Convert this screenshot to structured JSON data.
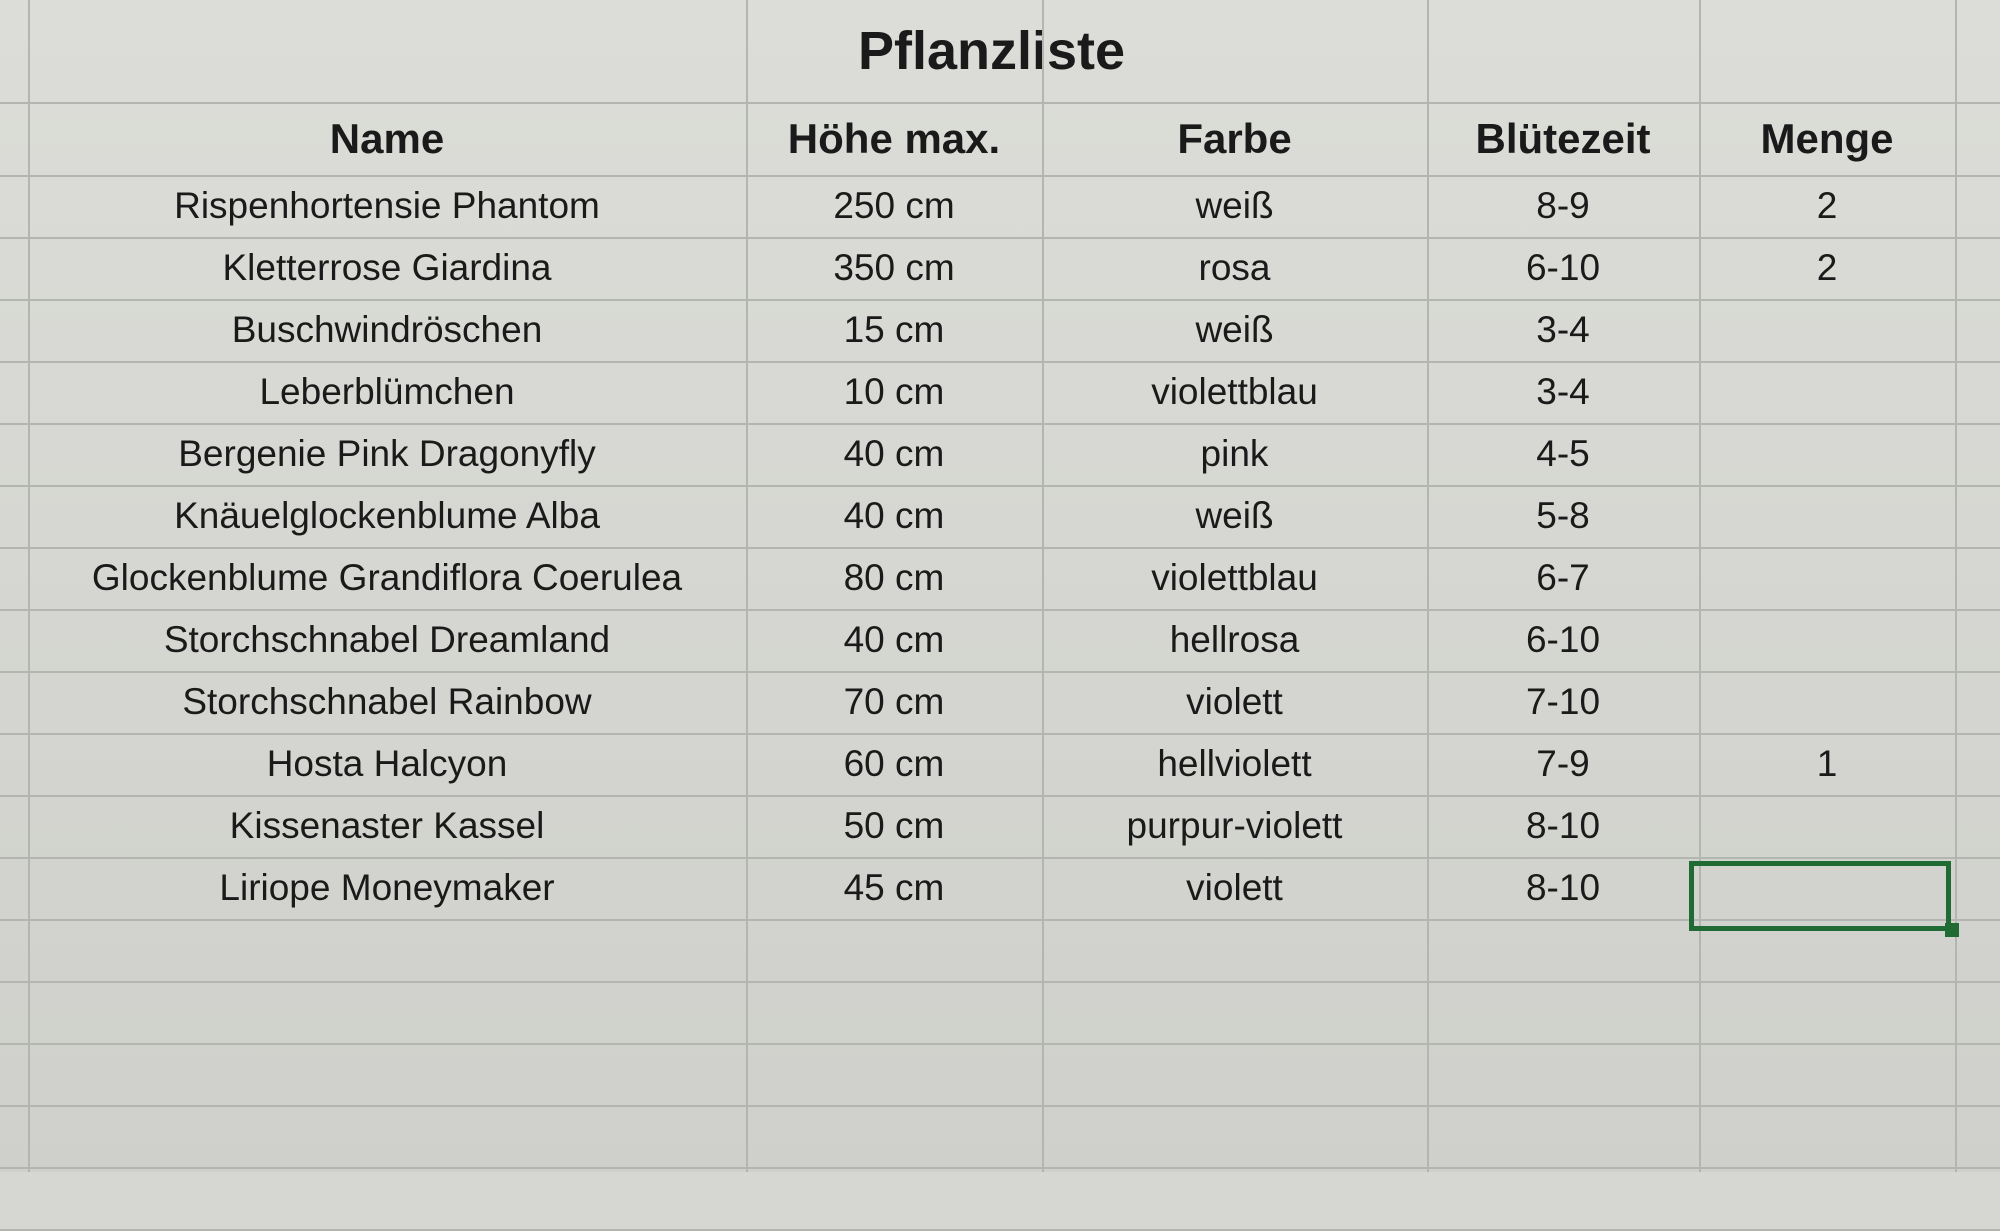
{
  "sheet": {
    "title": "Pflanzliste",
    "columns": [
      "Name",
      "Höhe max.",
      "Farbe",
      "Blütezeit",
      "Menge"
    ],
    "rows": [
      [
        "Rispenhortensie Phantom",
        "250 cm",
        "weiß",
        "8-9",
        "2"
      ],
      [
        "Kletterrose Giardina",
        "350 cm",
        "rosa",
        "6-10",
        "2"
      ],
      [
        "Buschwindröschen",
        "15 cm",
        "weiß",
        "3-4",
        ""
      ],
      [
        "Leberblümchen",
        "10 cm",
        "violettblau",
        "3-4",
        ""
      ],
      [
        "Bergenie Pink Dragonyfly",
        "40 cm",
        "pink",
        "4-5",
        ""
      ],
      [
        "Knäuelglockenblume Alba",
        "40 cm",
        "weiß",
        "5-8",
        ""
      ],
      [
        "Glockenblume Grandiflora Coerulea",
        "80 cm",
        "violettblau",
        "6-7",
        ""
      ],
      [
        "Storchschnabel Dreamland",
        "40 cm",
        "hellrosa",
        "6-10",
        ""
      ],
      [
        "Storchschnabel Rainbow",
        "70 cm",
        "violett",
        "7-10",
        ""
      ],
      [
        "Hosta Halcyon",
        "60 cm",
        "hellviolett",
        "7-9",
        "1"
      ],
      [
        "Kissenaster Kassel",
        "50 cm",
        "purpur-violett",
        "8-10",
        ""
      ],
      [
        "Liriope Moneymaker",
        "45 cm",
        "violett",
        "8-10",
        ""
      ]
    ],
    "selection_color": "#1f6b33"
  }
}
